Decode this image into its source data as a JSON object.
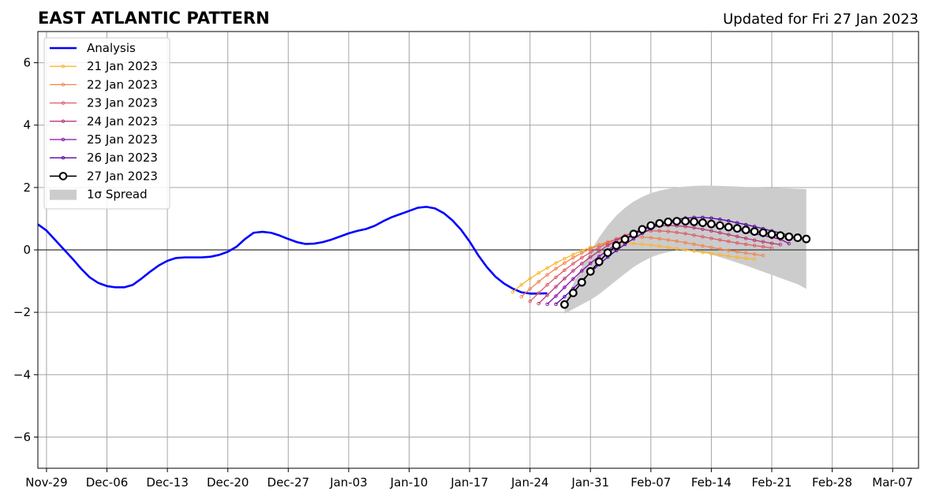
{
  "title": "EAST ATLANTIC PATTERN",
  "updated": "Updated for Fri 27 Jan 2023",
  "chart_data": {
    "type": "line",
    "title": "EAST ATLANTIC PATTERN",
    "xlabel": "",
    "ylabel": "",
    "ylim": [
      -7,
      7
    ],
    "xlim": [
      "2022-11-28",
      "2023-03-10"
    ],
    "grid": true,
    "zero_line": true,
    "legend_position": "top-left",
    "x_ticks": [
      "2022-11-29",
      "2022-12-06",
      "2022-12-13",
      "2022-12-20",
      "2022-12-27",
      "2023-01-03",
      "2023-01-10",
      "2023-01-17",
      "2023-01-24",
      "2023-01-31",
      "2023-02-07",
      "2023-02-14",
      "2023-02-21",
      "2023-02-28",
      "2023-03-07"
    ],
    "x_tick_labels": [
      "Nov-29",
      "Dec-06",
      "Dec-13",
      "Dec-20",
      "Dec-27",
      "Jan-03",
      "Jan-10",
      "Jan-17",
      "Jan-24",
      "Jan-31",
      "Feb-07",
      "Feb-14",
      "Feb-21",
      "Feb-28",
      "Mar-07"
    ],
    "y_ticks": [
      -6,
      -4,
      -2,
      0,
      2,
      4,
      6
    ],
    "y_tick_labels": [
      "−6",
      "−4",
      "−2",
      "0",
      "2",
      "4",
      "6"
    ],
    "analysis": {
      "name": "Analysis",
      "color": "#0000ff",
      "x": [
        "2022-11-28",
        "2022-11-29",
        "2022-11-30",
        "2022-12-01",
        "2022-12-02",
        "2022-12-03",
        "2022-12-04",
        "2022-12-05",
        "2022-12-06",
        "2022-12-07",
        "2022-12-08",
        "2022-12-09",
        "2022-12-10",
        "2022-12-11",
        "2022-12-12",
        "2022-12-13",
        "2022-12-14",
        "2022-12-15",
        "2022-12-16",
        "2022-12-17",
        "2022-12-18",
        "2022-12-19",
        "2022-12-20",
        "2022-12-21",
        "2022-12-22",
        "2022-12-23",
        "2022-12-24",
        "2022-12-25",
        "2022-12-26",
        "2022-12-27",
        "2022-12-28",
        "2022-12-29",
        "2022-12-30",
        "2022-12-31",
        "2023-01-01",
        "2023-01-02",
        "2023-01-03",
        "2023-01-04",
        "2023-01-05",
        "2023-01-06",
        "2023-01-07",
        "2023-01-08",
        "2023-01-09",
        "2023-01-10",
        "2023-01-11",
        "2023-01-12",
        "2023-01-13",
        "2023-01-14",
        "2023-01-15",
        "2023-01-16",
        "2023-01-17",
        "2023-01-18",
        "2023-01-19",
        "2023-01-20",
        "2023-01-21",
        "2023-01-22",
        "2023-01-23",
        "2023-01-24",
        "2023-01-25",
        "2023-01-26"
      ],
      "values": [
        0.82,
        0.62,
        0.32,
        0.02,
        -0.28,
        -0.6,
        -0.88,
        -1.06,
        -1.16,
        -1.2,
        -1.2,
        -1.12,
        -0.92,
        -0.7,
        -0.5,
        -0.35,
        -0.26,
        -0.24,
        -0.24,
        -0.24,
        -0.22,
        -0.16,
        -0.06,
        0.1,
        0.35,
        0.55,
        0.58,
        0.55,
        0.46,
        0.35,
        0.25,
        0.19,
        0.2,
        0.25,
        0.33,
        0.43,
        0.53,
        0.61,
        0.67,
        0.77,
        0.92,
        1.05,
        1.15,
        1.25,
        1.35,
        1.38,
        1.33,
        1.18,
        0.95,
        0.65,
        0.27,
        -0.17,
        -0.55,
        -0.86,
        -1.08,
        -1.24,
        -1.36,
        -1.4,
        -1.4,
        -1.39
      ]
    },
    "forecasts": [
      {
        "name": "21 Jan 2023",
        "color": "#fcb531",
        "start": "2023-01-22",
        "days": 28,
        "values": [
          -1.35,
          -1.12,
          -0.92,
          -0.74,
          -0.58,
          -0.42,
          -0.28,
          -0.15,
          -0.02,
          0.08,
          0.16,
          0.2,
          0.22,
          0.21,
          0.2,
          0.18,
          0.15,
          0.12,
          0.08,
          0.04,
          0.0,
          -0.04,
          -0.08,
          -0.12,
          -0.16,
          -0.2,
          -0.24,
          -0.27,
          -0.3
        ]
      },
      {
        "name": "22 Jan 2023",
        "color": "#f1844b",
        "start": "2023-01-23",
        "days": 28,
        "values": [
          -1.5,
          -1.25,
          -1.02,
          -0.8,
          -0.6,
          -0.42,
          -0.25,
          -0.1,
          0.04,
          0.16,
          0.26,
          0.34,
          0.39,
          0.41,
          0.41,
          0.39,
          0.36,
          0.32,
          0.28,
          0.23,
          0.18,
          0.13,
          0.08,
          0.03,
          -0.02,
          -0.06,
          -0.1,
          -0.14,
          -0.18
        ]
      },
      {
        "name": "23 Jan 2023",
        "color": "#db5c68",
        "start": "2023-01-24",
        "days": 28,
        "values": [
          -1.65,
          -1.38,
          -1.12,
          -0.88,
          -0.65,
          -0.44,
          -0.25,
          -0.08,
          0.08,
          0.22,
          0.35,
          0.46,
          0.54,
          0.59,
          0.61,
          0.61,
          0.59,
          0.56,
          0.52,
          0.47,
          0.42,
          0.37,
          0.32,
          0.27,
          0.22,
          0.18,
          0.14,
          0.1,
          0.06
        ]
      },
      {
        "name": "24 Jan 2023",
        "color": "#b73779",
        "start": "2023-01-25",
        "days": 28,
        "values": [
          -1.72,
          -1.45,
          -1.18,
          -0.92,
          -0.67,
          -0.44,
          -0.23,
          -0.04,
          0.14,
          0.3,
          0.44,
          0.56,
          0.66,
          0.73,
          0.77,
          0.78,
          0.77,
          0.75,
          0.71,
          0.66,
          0.61,
          0.55,
          0.49,
          0.43,
          0.37,
          0.31,
          0.26,
          0.21,
          0.17
        ]
      },
      {
        "name": "25 Jan 2023",
        "color": "#8b0aa5",
        "start": "2023-01-26",
        "days": 28,
        "values": [
          -1.74,
          -1.48,
          -1.2,
          -0.93,
          -0.67,
          -0.43,
          -0.21,
          -0.01,
          0.18,
          0.35,
          0.5,
          0.63,
          0.74,
          0.82,
          0.87,
          0.89,
          0.89,
          0.87,
          0.84,
          0.8,
          0.75,
          0.7,
          0.64,
          0.58,
          0.52,
          0.46,
          0.4,
          0.34,
          0.2
        ]
      },
      {
        "name": "26 Jan 2023",
        "color": "#5402a3",
        "start": "2023-01-27",
        "days": 28,
        "values": [
          -1.74,
          -1.5,
          -1.24,
          -0.98,
          -0.72,
          -0.47,
          -0.23,
          -0.02,
          0.18,
          0.36,
          0.53,
          0.68,
          0.81,
          0.91,
          0.98,
          1.02,
          1.04,
          1.04,
          1.02,
          0.98,
          0.93,
          0.87,
          0.81,
          0.75,
          0.68,
          0.61,
          0.54,
          0.47,
          0.35
        ]
      }
    ],
    "main_forecast": {
      "name": "27 Jan 2023",
      "color": "#000000",
      "start": "2023-01-28",
      "days": 28,
      "values": [
        -1.75,
        -1.38,
        -1.04,
        -0.69,
        -0.38,
        -0.09,
        0.14,
        0.34,
        0.51,
        0.66,
        0.78,
        0.85,
        0.9,
        0.92,
        0.92,
        0.9,
        0.87,
        0.83,
        0.78,
        0.73,
        0.69,
        0.64,
        0.59,
        0.55,
        0.5,
        0.46,
        0.42,
        0.39,
        0.35
      ]
    },
    "spread": {
      "name": "1σ Spread",
      "color": "#cccccc",
      "start": "2023-01-28",
      "days": 28,
      "upper": [
        -1.7,
        -1.1,
        -0.55,
        -0.05,
        0.4,
        0.78,
        1.1,
        1.35,
        1.55,
        1.7,
        1.82,
        1.9,
        1.96,
        2.0,
        2.03,
        2.05,
        2.06,
        2.06,
        2.05,
        2.04,
        2.03,
        2.02,
        2.01,
        2.0,
        1.99,
        1.98,
        1.97,
        1.96,
        1.95
      ],
      "lower": [
        -2.05,
        -1.9,
        -1.75,
        -1.6,
        -1.42,
        -1.2,
        -0.98,
        -0.76,
        -0.55,
        -0.38,
        -0.24,
        -0.14,
        -0.07,
        -0.02,
        0.0,
        -0.03,
        -0.08,
        -0.15,
        -0.23,
        -0.32,
        -0.41,
        -0.5,
        -0.6,
        -0.7,
        -0.8,
        -0.9,
        -1.0,
        -1.1,
        -1.25
      ]
    }
  }
}
